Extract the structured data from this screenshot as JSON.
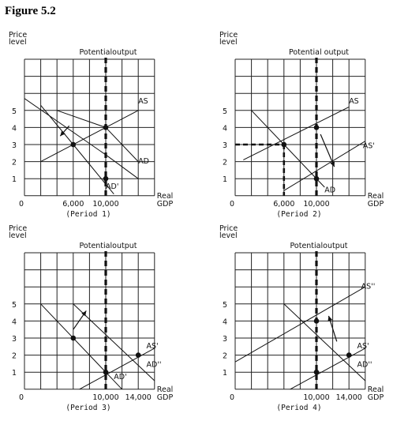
{
  "figure_title": "Figure 5.2",
  "colors": {
    "ink": "#111111",
    "grid": "#222222",
    "faint_line": "#666666"
  },
  "chart_data": [
    {
      "type": "line",
      "caption": "(Period 1)",
      "ylabel": "Price level",
      "xlabel": "Real GDP",
      "top_label": "Potentialoutput",
      "grid": true,
      "xlim": [
        0,
        16000
      ],
      "ylim": [
        0,
        8
      ],
      "x_ticks": [
        "6,000",
        "10,000"
      ],
      "x_tick_values": [
        6000,
        10000
      ],
      "y_ticks": [
        "1",
        "2",
        "3",
        "4",
        "5"
      ],
      "origin_label": "0",
      "potential_output": 10000,
      "series": [
        {
          "name": "AS",
          "style": "solid",
          "points": [
            [
              2000,
              2
            ],
            [
              14000,
              5
            ]
          ],
          "label_at": [
            14000,
            5.4
          ]
        },
        {
          "name": "AD",
          "style": "solid",
          "points": [
            [
              0,
              5.7
            ],
            [
              10000,
              2.4
            ],
            [
              14000,
              1
            ]
          ],
          "label_at": [
            14000,
            1.9
          ],
          "clip": true
        },
        {
          "name": "AD'",
          "style": "solid",
          "points": [
            [
              4000,
              5
            ],
            [
              10000,
              4
            ],
            [
              14000,
              2
            ]
          ]
        },
        {
          "name": "AD'",
          "style": "solid",
          "points": [
            [
              2000,
              5.3
            ],
            [
              6000,
              3
            ],
            [
              11000,
              0.1
            ]
          ],
          "label_at": [
            10000,
            0.4
          ]
        }
      ],
      "points": [
        [
          6000,
          3
        ],
        [
          10000,
          4
        ],
        [
          10000,
          1
        ]
      ],
      "arrows": [
        [
          [
            5500,
            4.1
          ],
          [
            4400,
            3.5
          ]
        ]
      ],
      "dashed_guides": []
    },
    {
      "type": "line",
      "caption": "(Period 2)",
      "ylabel": "Price level",
      "xlabel": "Real GDP",
      "top_label": "Potential output",
      "grid": true,
      "xlim": [
        0,
        16000
      ],
      "ylim": [
        0,
        8
      ],
      "x_ticks": [
        "6,000",
        "10,000"
      ],
      "x_tick_values": [
        6000,
        10000
      ],
      "y_ticks": [
        "1",
        "2",
        "3",
        "4",
        "5"
      ],
      "origin_label": "0",
      "potential_output": 10000,
      "series": [
        {
          "name": "AS",
          "style": "solid",
          "points": [
            [
              1000,
              2.1
            ],
            [
              14000,
              5.2
            ]
          ],
          "label_at": [
            14000,
            5.4
          ]
        },
        {
          "name": "AS'",
          "style": "solid",
          "points": [
            [
              6000,
              0.3
            ],
            [
              16000,
              3.2
            ]
          ],
          "label_at": [
            15700,
            2.8
          ]
        },
        {
          "name": "AD",
          "style": "solid",
          "points": [
            [
              2000,
              5
            ],
            [
              6000,
              3
            ],
            [
              11000,
              0.5
            ]
          ],
          "label_at": [
            11000,
            0.2
          ]
        }
      ],
      "points": [
        [
          6000,
          3
        ],
        [
          10000,
          4
        ],
        [
          10000,
          1
        ]
      ],
      "arrows": [
        [
          [
            10500,
            3.6
          ],
          [
            12200,
            1.7
          ]
        ]
      ],
      "dashed_guides": [
        [
          [
            0,
            3
          ],
          [
            6000,
            3
          ]
        ],
        [
          [
            6000,
            3
          ],
          [
            6000,
            0
          ]
        ]
      ]
    },
    {
      "type": "line",
      "caption": "(Period 3)",
      "ylabel": "Price level",
      "xlabel": "Real GDP",
      "top_label": "Potentialoutput",
      "grid": true,
      "xlim": [
        0,
        16000
      ],
      "ylim": [
        0,
        8
      ],
      "x_ticks": [
        "10,000",
        "14,000"
      ],
      "x_tick_values": [
        10000,
        14000
      ],
      "y_ticks": [
        "1",
        "2",
        "3",
        "4",
        "5"
      ],
      "origin_label": "0",
      "potential_output": 10000,
      "series": [
        {
          "name": "AS'",
          "style": "solid",
          "points": [
            [
              6000,
              -0.2
            ],
            [
              16000,
              2.4
            ]
          ],
          "label_at": [
            15000,
            2.4
          ]
        },
        {
          "name": "AD''",
          "style": "solid",
          "points": [
            [
              6000,
              5
            ],
            [
              16000,
              0.5
            ]
          ],
          "label_at": [
            15000,
            1.3
          ]
        },
        {
          "name": "AD'",
          "style": "solid",
          "points": [
            [
              2000,
              5
            ],
            [
              10000,
              1
            ],
            [
              12000,
              0
            ]
          ],
          "label_at": [
            11000,
            0.6
          ]
        }
      ],
      "points": [
        [
          6000,
          3
        ],
        [
          10000,
          1
        ],
        [
          14000,
          2
        ]
      ],
      "arrows": [
        [
          [
            6000,
            3.5
          ],
          [
            7600,
            4.6
          ]
        ]
      ],
      "dashed_guides": []
    },
    {
      "type": "line",
      "caption": "(Period 4)",
      "ylabel": "Price level",
      "xlabel": "Real GDP",
      "top_label": "Potentialoutput",
      "grid": true,
      "xlim": [
        0,
        16000
      ],
      "ylim": [
        0,
        8
      ],
      "x_ticks": [
        "10,000",
        "14,000"
      ],
      "x_tick_values": [
        10000,
        14000
      ],
      "y_ticks": [
        "1",
        "2",
        "3",
        "4",
        "5"
      ],
      "origin_label": "0",
      "potential_output": 10000,
      "series": [
        {
          "name": "AS''",
          "style": "solid",
          "points": [
            [
              0,
              1.6
            ],
            [
              16000,
              6
            ]
          ],
          "label_at": [
            15500,
            5.9
          ]
        },
        {
          "name": "AS'",
          "style": "solid",
          "points": [
            [
              6000,
              -0.2
            ],
            [
              16000,
              2.4
            ]
          ],
          "label_at": [
            15000,
            2.4
          ]
        },
        {
          "name": "AD''",
          "style": "solid",
          "points": [
            [
              6000,
              5
            ],
            [
              16000,
              0.5
            ]
          ],
          "label_at": [
            15000,
            1.3
          ]
        }
      ],
      "points": [
        [
          10000,
          4
        ],
        [
          10000,
          1
        ],
        [
          14000,
          2
        ]
      ],
      "arrows": [
        [
          [
            12500,
            2.8
          ],
          [
            11500,
            4.3
          ]
        ]
      ],
      "dashed_guides": []
    }
  ]
}
